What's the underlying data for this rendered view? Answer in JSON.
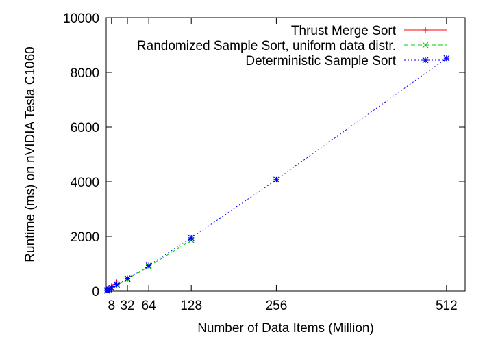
{
  "chart_data": {
    "type": "line",
    "title": "",
    "xlabel": "Number of Data Items (Million)",
    "ylabel": "Runtime (ms) on nVIDIA Tesla C1060",
    "xlim": [
      0,
      540
    ],
    "ylim": [
      0,
      10000
    ],
    "x_ticks": [
      8,
      32,
      64,
      128,
      256,
      512
    ],
    "x_tick_labels": [
      "8",
      "32",
      "64",
      "128",
      "256",
      "512"
    ],
    "y_ticks": [
      0,
      2000,
      4000,
      6000,
      8000,
      10000
    ],
    "y_tick_labels": [
      "0",
      "2000",
      "4000",
      "6000",
      "8000",
      "10000"
    ],
    "grid": false,
    "legend_position": "top-right",
    "series": [
      {
        "name": "Thrust Merge Sort",
        "color": "#ff0000",
        "marker": "plus",
        "dash": "solid",
        "points": [
          [
            1,
            40
          ],
          [
            2,
            70
          ],
          [
            4,
            110
          ],
          [
            8,
            190
          ],
          [
            16,
            340
          ]
        ]
      },
      {
        "name": "Randomized Sample Sort, uniform data distr.",
        "color": "#00cc00",
        "marker": "cross",
        "dash": "dashed",
        "points": [
          [
            1,
            20
          ],
          [
            2,
            35
          ],
          [
            4,
            60
          ],
          [
            8,
            110
          ],
          [
            16,
            220
          ],
          [
            32,
            440
          ],
          [
            64,
            900
          ],
          [
            128,
            1870
          ]
        ]
      },
      {
        "name": "Deterministic Sample Sort",
        "color": "#0000ff",
        "marker": "star",
        "dash": "dotted",
        "points": [
          [
            1,
            25
          ],
          [
            2,
            40
          ],
          [
            4,
            65
          ],
          [
            8,
            120
          ],
          [
            16,
            235
          ],
          [
            32,
            460
          ],
          [
            64,
            940
          ],
          [
            128,
            1950
          ],
          [
            256,
            4080
          ],
          [
            512,
            8520
          ]
        ]
      }
    ]
  }
}
